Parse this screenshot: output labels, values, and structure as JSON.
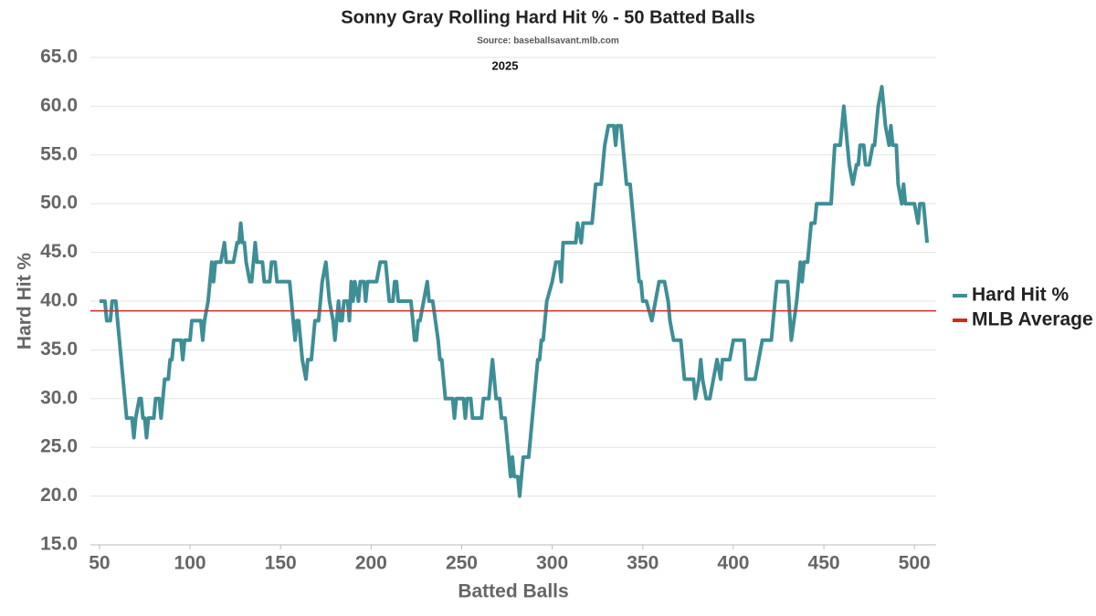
{
  "chart_data": {
    "type": "line",
    "title": "Sonny Gray Rolling Hard Hit % - 50 Batted Balls",
    "subtitle": "Source: baseballsavant.mlb.com",
    "annotation": "2025",
    "x_label": "Batted Balls",
    "y_label": "Hard Hit %",
    "xlim": [
      45,
      512
    ],
    "xticks": [
      50,
      100,
      150,
      200,
      250,
      300,
      350,
      400,
      450,
      500
    ],
    "ylim": [
      15,
      65
    ],
    "yticks": [
      {
        "value": 15,
        "label": "15.0"
      },
      {
        "value": 20,
        "label": "20.0"
      },
      {
        "value": 25,
        "label": "25.0"
      },
      {
        "value": 30,
        "label": "30.0"
      },
      {
        "value": 35,
        "label": "35.0"
      },
      {
        "value": 40,
        "label": "40.0"
      },
      {
        "value": 45,
        "label": "45.0"
      },
      {
        "value": 50,
        "label": "50.0"
      },
      {
        "value": 55,
        "label": "55.0"
      },
      {
        "value": 60,
        "label": "60.0"
      },
      {
        "value": 65,
        "label": "65.0"
      }
    ],
    "grid": true,
    "legend": "right",
    "x": [
      50,
      53,
      54,
      56,
      57,
      59,
      61,
      63,
      65,
      68,
      69,
      70,
      72,
      73,
      74,
      75,
      76,
      77,
      80,
      81,
      83,
      84,
      86,
      88,
      89,
      90,
      91,
      95,
      96,
      97,
      100,
      101,
      106,
      107,
      108,
      110,
      112,
      113,
      114,
      117,
      119,
      120,
      124,
      126,
      127,
      128,
      129,
      130,
      131,
      133,
      134,
      136,
      137,
      140,
      141,
      144,
      145,
      147,
      148,
      155,
      156,
      157,
      158,
      159,
      160,
      161,
      162,
      164,
      165,
      167,
      168,
      169,
      171,
      173,
      175,
      176,
      177,
      179,
      180,
      181,
      182,
      183,
      184,
      185,
      187,
      188,
      189,
      190,
      191,
      193,
      194,
      196,
      197,
      198,
      203,
      205,
      208,
      209,
      210,
      212,
      213,
      214,
      215,
      222,
      223,
      224,
      225,
      226,
      227,
      229,
      231,
      232,
      234,
      237,
      238,
      239,
      240,
      241,
      245,
      246,
      247,
      251,
      252,
      253,
      255,
      256,
      261,
      262,
      265,
      267,
      269,
      271,
      272,
      274,
      275,
      276,
      277,
      278,
      279,
      281,
      282,
      283,
      284,
      287,
      288,
      290,
      292,
      293,
      294,
      295,
      297,
      300,
      302,
      304,
      305,
      306,
      313,
      314,
      316,
      317,
      322,
      324,
      327,
      328,
      329,
      331,
      334,
      335,
      336,
      338,
      340,
      341,
      343,
      345,
      348,
      349,
      350,
      352,
      355,
      357,
      359,
      362,
      364,
      365,
      367,
      371,
      373,
      378,
      379,
      381,
      382,
      383,
      385,
      387,
      389,
      391,
      393,
      394,
      398,
      400,
      406,
      407,
      412,
      414,
      416,
      421,
      424,
      430,
      432,
      435,
      437,
      438,
      439,
      441,
      443,
      445,
      446,
      454,
      456,
      459,
      461,
      464,
      466,
      468,
      469,
      470,
      472,
      473,
      475,
      477,
      478,
      480,
      482,
      484,
      486,
      487,
      488,
      490,
      491,
      493,
      494,
      495,
      500,
      502,
      503,
      505,
      507
    ],
    "series": [
      {
        "name": "Hard Hit %",
        "color": "#3e8e96",
        "values": [
          40,
          40,
          38,
          38,
          40,
          40,
          36,
          32,
          28,
          28,
          26,
          28,
          30,
          30,
          28,
          28,
          26,
          28,
          28,
          30,
          30,
          28,
          32,
          32,
          34,
          34,
          36,
          36,
          34,
          36,
          36,
          38,
          38,
          36,
          38,
          40,
          44,
          42,
          44,
          44,
          46,
          44,
          44,
          46,
          46,
          48,
          46,
          46,
          44,
          42,
          42,
          46,
          44,
          44,
          42,
          42,
          44,
          44,
          42,
          42,
          40,
          38,
          36,
          38,
          38,
          36,
          34,
          32,
          34,
          34,
          36,
          38,
          38,
          42,
          44,
          42,
          40,
          38,
          36,
          38,
          40,
          38,
          38,
          40,
          40,
          38,
          42,
          40,
          42,
          40,
          42,
          42,
          40,
          42,
          42,
          44,
          44,
          42,
          40,
          40,
          42,
          42,
          40,
          40,
          38,
          36,
          36,
          38,
          38,
          40,
          42,
          40,
          40,
          36,
          34,
          34,
          32,
          30,
          30,
          28,
          30,
          30,
          28,
          30,
          30,
          28,
          28,
          30,
          30,
          34,
          30,
          30,
          28,
          28,
          26,
          24,
          22,
          24,
          22,
          22,
          20,
          22,
          24,
          24,
          26,
          30,
          34,
          34,
          36,
          36,
          40,
          42,
          44,
          44,
          42,
          46,
          46,
          48,
          46,
          48,
          48,
          52,
          52,
          54,
          56,
          58,
          58,
          56,
          58,
          58,
          54,
          52,
          52,
          48,
          42,
          42,
          40,
          40,
          38,
          40,
          42,
          42,
          40,
          38,
          36,
          36,
          32,
          32,
          30,
          32,
          34,
          32,
          30,
          30,
          32,
          34,
          32,
          34,
          34,
          36,
          36,
          32,
          32,
          34,
          36,
          36,
          42,
          42,
          36,
          40,
          44,
          42,
          44,
          44,
          48,
          48,
          50,
          50,
          56,
          56,
          60,
          54,
          52,
          54,
          54,
          56,
          56,
          54,
          54,
          56,
          56,
          60,
          62,
          58,
          56,
          58,
          56,
          56,
          52,
          50,
          52,
          50,
          50,
          48,
          50,
          50,
          46
        ]
      },
      {
        "name": "MLB Average",
        "color": "#d62728",
        "value": 39
      }
    ]
  }
}
